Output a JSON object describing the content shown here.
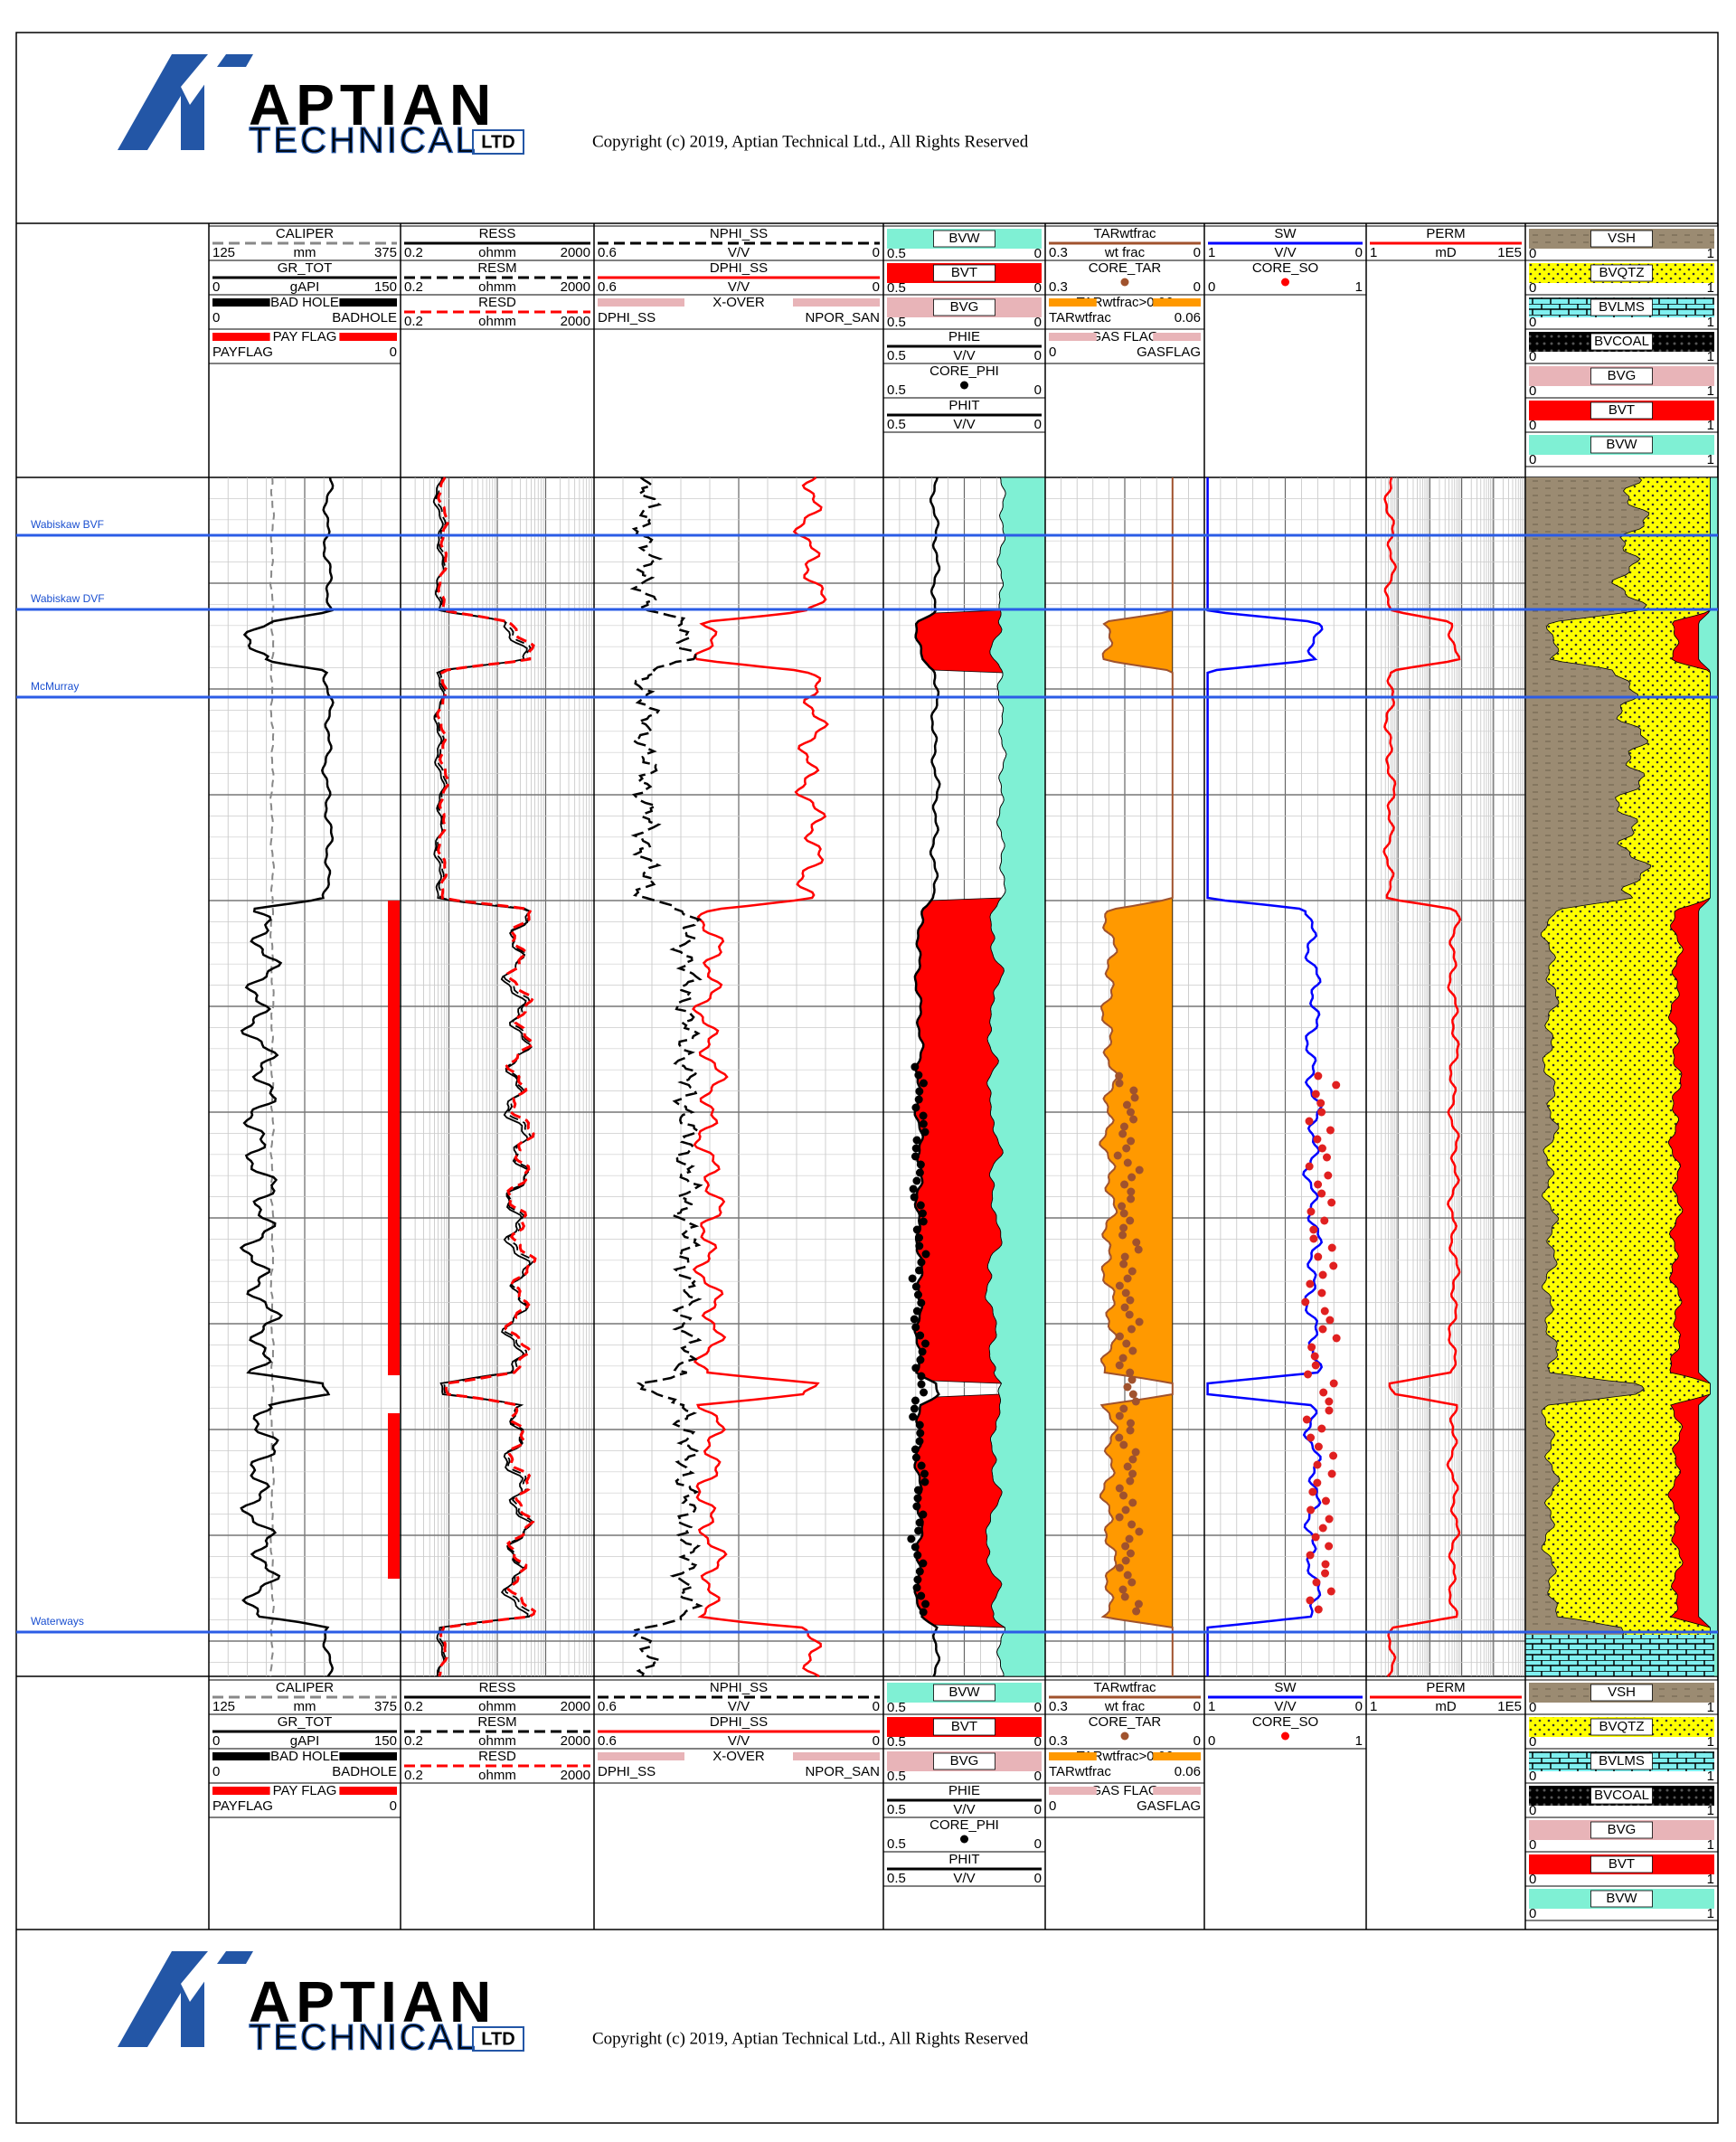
{
  "header": {
    "logo": {
      "name": "APTIAN",
      "sub": "TECHNICAL",
      "suffix": "LTD"
    },
    "copyright": "Copyright (c) 2019, Aptian Technical Ltd., All Rights Reserved"
  },
  "tops": [
    "Wabiskaw BVF",
    "Wabiskaw DVF",
    "McMurray",
    "Waterways"
  ],
  "tracks": [
    {
      "entries": [
        {
          "name": "CALIPER",
          "kind": "line",
          "color": "#888888",
          "dash": true,
          "left": "125",
          "unit": "mm",
          "right": "375"
        },
        {
          "name": "GR_TOT",
          "kind": "line",
          "color": "#000000",
          "left": "0",
          "unit": "gAPI",
          "right": "150"
        },
        {
          "name": "BAD HOLE",
          "kind": "bar",
          "color": "#000000",
          "left": "0",
          "right": "BADHOLE"
        },
        {
          "name": "PAY FLAG",
          "kind": "bar",
          "color": "#ff0000",
          "left": "PAYFLAG",
          "right": "0"
        }
      ]
    },
    {
      "entries": [
        {
          "name": "RESS",
          "kind": "line",
          "color": "#000000",
          "left": "0.2",
          "unit": "ohmm",
          "right": "2000"
        },
        {
          "name": "RESM",
          "kind": "line",
          "color": "#000000",
          "dash": true,
          "left": "0.2",
          "unit": "ohmm",
          "right": "2000"
        },
        {
          "name": "RESD",
          "kind": "line",
          "color": "#ff0000",
          "dash": true,
          "left": "0.2",
          "unit": "ohmm",
          "right": "2000"
        }
      ]
    },
    {
      "entries": [
        {
          "name": "NPHI_SS",
          "kind": "line",
          "color": "#000000",
          "dash": true,
          "left": "0.6",
          "unit": "V/V",
          "right": "0"
        },
        {
          "name": "DPHI_SS",
          "kind": "line",
          "color": "#ff0000",
          "left": "0.6",
          "unit": "V/V",
          "right": "0"
        },
        {
          "name": "X-OVER",
          "kind": "bar",
          "color": "#e8b4b8",
          "left": "DPHI_SS",
          "right": "NPOR_SAN"
        }
      ]
    },
    {
      "entries": [
        {
          "name": "BVW",
          "kind": "fill",
          "color": "#7ff0d4",
          "left": "0.5",
          "right": "0"
        },
        {
          "name": "BVT",
          "kind": "fill",
          "color": "#ff0000",
          "left": "0.5",
          "right": "0"
        },
        {
          "name": "BVG",
          "kind": "fill",
          "color": "#e8b4b8",
          "left": "0.5",
          "right": "0"
        },
        {
          "name": "PHIE",
          "kind": "line",
          "color": "#000000",
          "left": "0.5",
          "unit": "V/V",
          "right": "0"
        },
        {
          "name": "CORE_PHI",
          "kind": "dot",
          "color": "#000000",
          "left": "0.5",
          "right": "0"
        },
        {
          "name": "PHIT",
          "kind": "line",
          "color": "#000000",
          "left": "0.5",
          "unit": "V/V",
          "right": "0"
        }
      ]
    },
    {
      "entries": [
        {
          "name": "TARwtfrac",
          "kind": "line",
          "color": "#a0522d",
          "left": "0.3",
          "unit": "wt frac",
          "right": "0"
        },
        {
          "name": "CORE_TAR",
          "kind": "dot",
          "color": "#a0522d",
          "left": "0.3",
          "right": "0"
        },
        {
          "name": "TARwtfrac>0.06",
          "kind": "bar",
          "color": "#ff9900",
          "left": "TARwtfrac",
          "right": "0.06"
        },
        {
          "name": "GAS FLAG",
          "kind": "bar",
          "color": "#e8b4b8",
          "left": "0",
          "right": "GASFLAG"
        }
      ]
    },
    {
      "entries": [
        {
          "name": "SW",
          "kind": "line",
          "color": "#0000ff",
          "left": "1",
          "unit": "V/V",
          "right": "0"
        },
        {
          "name": "CORE_SO",
          "kind": "dot",
          "color": "#ff0000",
          "left": "0",
          "right": "1"
        }
      ]
    },
    {
      "entries": [
        {
          "name": "PERM",
          "kind": "line",
          "color": "#ff0000",
          "left": "1",
          "unit": "mD",
          "right": "1E5"
        }
      ]
    },
    {
      "entries": [
        {
          "name": "VSH",
          "kind": "fill",
          "color": "#9b8b72",
          "left": "0",
          "right": "1"
        },
        {
          "name": "BVQTZ",
          "kind": "fill",
          "color": "#ffff00",
          "left": "0",
          "right": "1"
        },
        {
          "name": "BVLMS",
          "kind": "fill",
          "color": "#7ff0f0",
          "left": "0",
          "right": "1"
        },
        {
          "name": "BVCOAL",
          "kind": "fill",
          "color": "#000000",
          "left": "0",
          "right": "1"
        },
        {
          "name": "BVG",
          "kind": "fill",
          "color": "#e8b4b8",
          "left": "0",
          "right": "1"
        },
        {
          "name": "BVT",
          "kind": "fill",
          "color": "#ff0000",
          "left": "0",
          "right": "1"
        },
        {
          "name": "BVW",
          "kind": "fill",
          "color": "#7ff0d4",
          "left": "0",
          "right": "1"
        }
      ]
    }
  ]
}
